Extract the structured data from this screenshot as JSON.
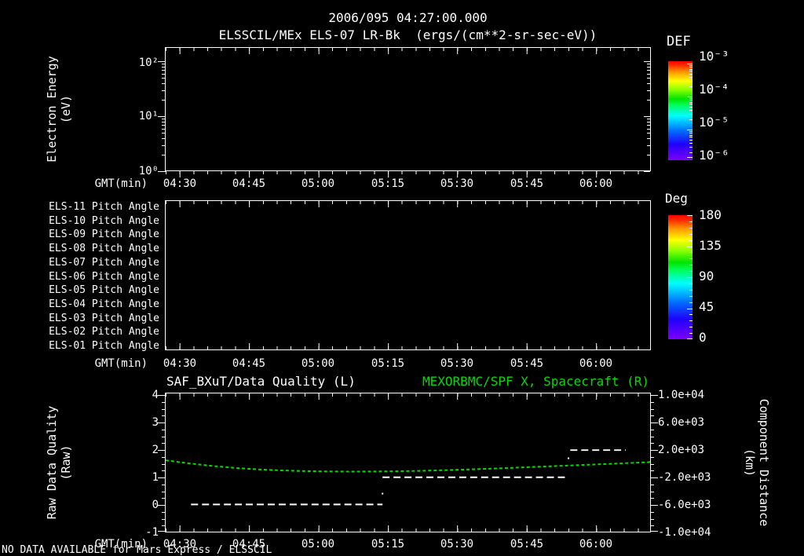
{
  "header": {
    "line1": "2006/095 04:27:00.000",
    "line2": "ELSSCIL/MEx ELS-07 LR-Bk  (ergs/(cm**2-sr-sec-eV))"
  },
  "footer": {
    "status": "NO DATA AVAILABLE for Mars Express / ELSSCIL"
  },
  "time_axis": {
    "label": "GMT(min)",
    "tick_labels": [
      "04:30",
      "04:45",
      "05:00",
      "05:15",
      "05:30",
      "05:45",
      "06:00"
    ]
  },
  "energy_panel": {
    "ylabel": "Electron Energy",
    "ylabel_units": "(eV)",
    "ytick_labels": [
      "10²",
      "10¹",
      "10⁰"
    ]
  },
  "def_colorbar": {
    "title": "DEF",
    "tick_labels": [
      "10⁻³",
      "10⁻⁴",
      "10⁻⁵",
      "10⁻⁶"
    ]
  },
  "pitch_panel": {
    "row_labels": [
      "ELS-11 Pitch Angle",
      "ELS-10 Pitch Angle",
      "ELS-09 Pitch Angle",
      "ELS-08 Pitch Angle",
      "ELS-07 Pitch Angle",
      "ELS-06 Pitch Angle",
      "ELS-05 Pitch Angle",
      "ELS-04 Pitch Angle",
      "ELS-03 Pitch Angle",
      "ELS-02 Pitch Angle",
      "ELS-01 Pitch Angle"
    ]
  },
  "deg_colorbar": {
    "title": "Deg",
    "tick_labels": [
      "180",
      "135",
      "90",
      "45",
      "0"
    ]
  },
  "quality_panel": {
    "left_title": "SAF_BXuT/Data Quality (L)",
    "right_title": "MEXORBMC/SPF X, Spacecraft (R)",
    "left_ylabel": "Raw Data Quality",
    "left_ylabel_units": "(Raw)",
    "right_ylabel": "Component Distance",
    "right_ylabel_units": "(km)",
    "left_tick_labels": [
      "4",
      "3",
      "2",
      "1",
      "0",
      "-1"
    ],
    "right_tick_labels": [
      "1.0e+04",
      "6.0e+03",
      "2.0e+03",
      "-2.0e+03",
      "-6.0e+03",
      "-1.0e+04"
    ]
  },
  "colors": {
    "background": "#000000",
    "text": "#FFFFFF",
    "green_series": "#00DC00",
    "quality_series": "#FFFFFF"
  },
  "chart_data": [
    {
      "type": "heatmap",
      "title": "ELSSCIL/MEx ELS-07 LR-Bk",
      "units": "ergs/(cm**2-sr-sec-eV)",
      "xlabel": "GMT(min)",
      "x_ticks": [
        "04:30",
        "04:45",
        "05:00",
        "05:15",
        "05:30",
        "05:45",
        "06:00"
      ],
      "x_start": "04:27",
      "x_span_min": 105,
      "ylabel": "Electron Energy (eV)",
      "y_scale": "log",
      "y_ticks": [
        1,
        10,
        100
      ],
      "colorbar": {
        "label": "DEF",
        "scale": "log",
        "tick_values": [
          0.001,
          0.0001,
          1e-05,
          1e-06
        ]
      },
      "values": [],
      "note": "no data plotted"
    },
    {
      "type": "heatmap",
      "title": "ELS Pitch Angle panels",
      "rows": [
        "ELS-11",
        "ELS-10",
        "ELS-09",
        "ELS-08",
        "ELS-07",
        "ELS-06",
        "ELS-05",
        "ELS-04",
        "ELS-03",
        "ELS-02",
        "ELS-01"
      ],
      "xlabel": "GMT(min)",
      "x_ticks": [
        "04:30",
        "04:45",
        "05:00",
        "05:15",
        "05:30",
        "05:45",
        "06:00"
      ],
      "colorbar": {
        "label": "Deg",
        "tick_values": [
          180,
          135,
          90,
          45,
          0
        ],
        "range": [
          0,
          180
        ]
      },
      "values": [],
      "note": "no data plotted"
    },
    {
      "type": "line",
      "title_left": "SAF_BXuT/Data Quality (L)",
      "title_right": "MEXORBMC/SPF X, Spacecraft (R)",
      "xlabel": "GMT(min)",
      "x_ticks": [
        "04:30",
        "04:45",
        "05:00",
        "05:15",
        "05:30",
        "05:45",
        "06:00"
      ],
      "x_tick_minutes": [
        3,
        18,
        33,
        48,
        63,
        78,
        93
      ],
      "x_start": "04:27",
      "x_span_min": 105,
      "left_axis": {
        "label": "Raw Data Quality (Raw)",
        "range": [
          -1,
          4
        ],
        "ticks": [
          4,
          3,
          2,
          1,
          0,
          -1
        ]
      },
      "right_axis": {
        "label": "Component Distance (km)",
        "range": [
          -10000,
          10000
        ],
        "ticks": [
          10000,
          6000,
          2000,
          -2000,
          -6000,
          -10000
        ]
      },
      "series": [
        {
          "name": "SAF_BXuT/Data Quality (L)",
          "axis": "left",
          "color": "#FFFFFF",
          "style": "dashed",
          "segments": [
            {
              "value": 0,
              "t_start_min": 5.5,
              "t_end_min": 47
            },
            {
              "value": 1,
              "t_start_min": 47,
              "t_end_min": 87.3
            },
            {
              "value": 2,
              "t_start_min": 87.7,
              "t_end_min": 99.7
            }
          ],
          "isolated_points": [
            [
              47,
              0.4
            ],
            [
              87.3,
              1.7
            ]
          ]
        },
        {
          "name": "MEXORBMC/SPF X, Spacecraft (R)",
          "axis": "right",
          "color": "#00DC00",
          "style": "dashed",
          "points": [
            [
              0,
              500
            ],
            [
              5,
              60
            ],
            [
              10,
              -320
            ],
            [
              15,
              -620
            ],
            [
              20,
              -830
            ],
            [
              25,
              -980
            ],
            [
              30,
              -1080
            ],
            [
              35,
              -1130
            ],
            [
              40,
              -1150
            ],
            [
              45,
              -1140
            ],
            [
              50,
              -1110
            ],
            [
              55,
              -1050
            ],
            [
              60,
              -960
            ],
            [
              65,
              -860
            ],
            [
              70,
              -740
            ],
            [
              75,
              -610
            ],
            [
              80,
              -470
            ],
            [
              85,
              -330
            ],
            [
              90,
              -190
            ],
            [
              95,
              -60
            ],
            [
              100,
              90
            ],
            [
              105,
              240
            ]
          ]
        }
      ]
    }
  ]
}
